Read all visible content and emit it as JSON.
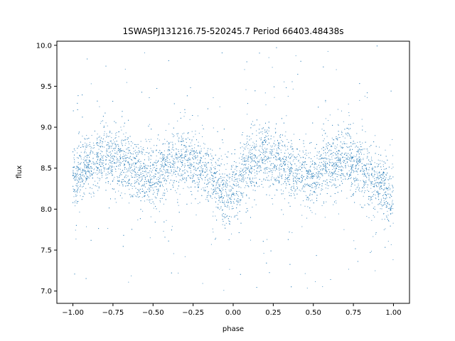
{
  "chart_data": {
    "type": "scatter",
    "title": "1SWASPJ131216.75-520245.7 Period 66403.48438s",
    "xlabel": "phase",
    "ylabel": "flux",
    "xlim": [
      -1.1,
      1.1
    ],
    "ylim": [
      6.85,
      10.05
    ],
    "xticks": [
      -1.0,
      -0.75,
      -0.5,
      -0.25,
      0.0,
      0.25,
      0.5,
      0.75,
      1.0
    ],
    "xtick_labels": [
      "−1.00",
      "−0.75",
      "−0.50",
      "−0.25",
      "0.00",
      "0.25",
      "0.50",
      "0.75",
      "1.00"
    ],
    "yticks": [
      7.0,
      7.5,
      8.0,
      8.5,
      9.0,
      9.5,
      10.0
    ],
    "ytick_labels": [
      "7.0",
      "7.5",
      "8.0",
      "8.5",
      "9.0",
      "9.5",
      "10.0"
    ],
    "grid": false,
    "series": [
      {
        "color": "#1f77b4",
        "marker": "dot",
        "phase_range": [
          -1.0,
          1.0
        ],
        "flux_profile": {
          "x": [
            -1.0,
            -0.9,
            -0.8,
            -0.7,
            -0.6,
            -0.5,
            -0.4,
            -0.3,
            -0.2,
            -0.1,
            0.0,
            0.1,
            0.2,
            0.3,
            0.4,
            0.5,
            0.6,
            0.7,
            0.8,
            0.9,
            1.0
          ],
          "y": [
            8.35,
            8.55,
            8.65,
            8.6,
            8.45,
            8.38,
            8.55,
            8.62,
            8.5,
            8.3,
            8.15,
            8.55,
            8.65,
            8.6,
            8.45,
            8.38,
            8.55,
            8.62,
            8.5,
            8.3,
            8.15
          ]
        },
        "flux_spread": 0.18,
        "outlier_range": [
          7.0,
          10.0
        ]
      }
    ]
  }
}
